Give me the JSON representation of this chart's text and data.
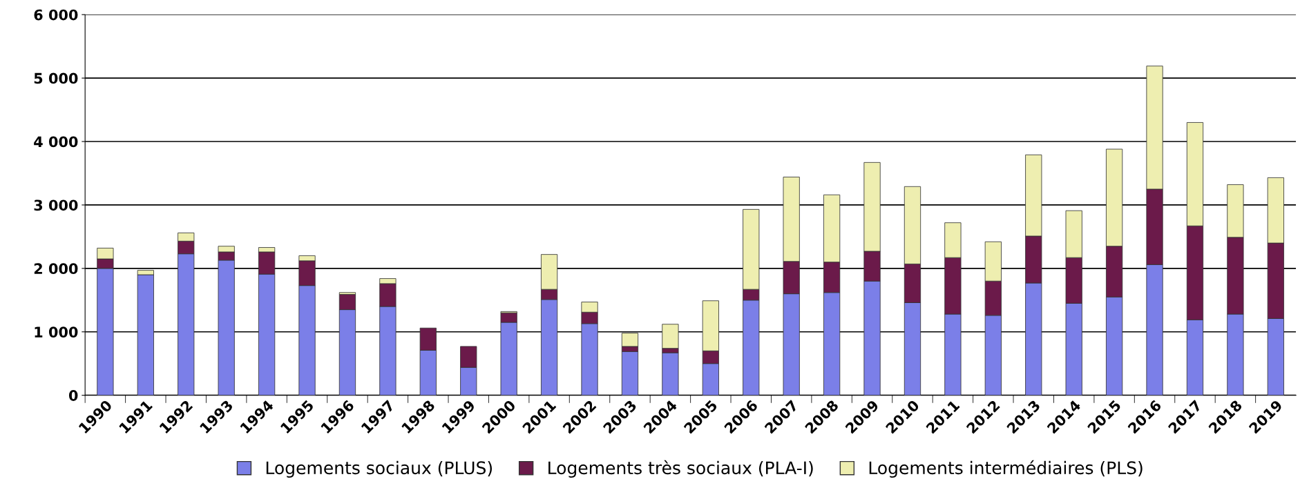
{
  "chart_data": {
    "type": "bar",
    "stacked": true,
    "categories": [
      "1990",
      "1991",
      "1992",
      "1993",
      "1994",
      "1995",
      "1996",
      "1997",
      "1998",
      "1999",
      "2000",
      "2001",
      "2002",
      "2003",
      "2004",
      "2005",
      "2006",
      "2007",
      "2008",
      "2009",
      "2010",
      "2011",
      "2012",
      "2013",
      "2014",
      "2015",
      "2016",
      "2017",
      "2018",
      "2019"
    ],
    "series": [
      {
        "name": "Logements sociaux (PLUS)",
        "color": "#7b7fe8",
        "values": [
          2000,
          1900,
          2230,
          2130,
          1910,
          1730,
          1350,
          1400,
          710,
          440,
          1150,
          1510,
          1130,
          690,
          670,
          500,
          1500,
          1600,
          1620,
          1800,
          1460,
          1280,
          1260,
          1770,
          1450,
          1550,
          2060,
          1190,
          1280,
          1210
        ]
      },
      {
        "name": "Logements très sociaux (PLA-I)",
        "color": "#6b1a4a",
        "values": [
          150,
          null,
          200,
          130,
          350,
          390,
          240,
          360,
          350,
          330,
          150,
          160,
          180,
          80,
          70,
          200,
          170,
          510,
          480,
          470,
          610,
          890,
          540,
          740,
          720,
          800,
          1190,
          1480,
          1210,
          1190
        ]
      },
      {
        "name": "Logements intermédiaires (PLS)",
        "color": "#eeeeb0",
        "values": [
          170,
          70,
          130,
          90,
          70,
          80,
          30,
          80,
          null,
          null,
          20,
          550,
          160,
          210,
          380,
          790,
          1260,
          1330,
          1060,
          1400,
          1220,
          550,
          620,
          1280,
          740,
          1530,
          1940,
          1630,
          830,
          1030
        ]
      }
    ],
    "ylim": [
      0,
      6000
    ],
    "yticks": [
      {
        "value": 0,
        "label": "0"
      },
      {
        "value": 1000,
        "label": "1 000"
      },
      {
        "value": 2000,
        "label": "2 000"
      },
      {
        "value": 3000,
        "label": "3 000"
      },
      {
        "value": 4000,
        "label": "4 000"
      },
      {
        "value": 5000,
        "label": "5 000"
      },
      {
        "value": 6000,
        "label": "6 000"
      }
    ],
    "grid": "y",
    "legend": "bottom"
  }
}
